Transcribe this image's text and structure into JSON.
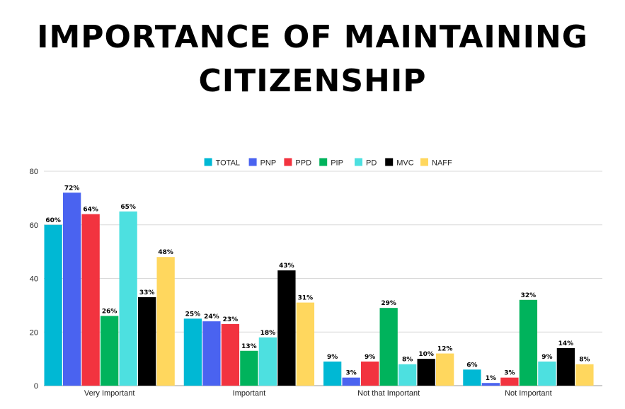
{
  "chart_data": {
    "type": "bar",
    "title": "IMPORTANCE OF MAINTAINING CITIZENSHIP",
    "categories": [
      "Very Important",
      "Important",
      "Not that Important",
      "Not Important"
    ],
    "series": [
      {
        "name": "TOTAL",
        "color": "#00B8D4",
        "values": [
          60,
          25,
          9,
          6
        ],
        "labels": [
          "60%",
          "25%",
          "9%",
          "6%"
        ]
      },
      {
        "name": "PNP",
        "color": "#4A63F0",
        "values": [
          72,
          24,
          3,
          1
        ],
        "labels": [
          "72%",
          "24%",
          "3%",
          "1%"
        ]
      },
      {
        "name": "PPD",
        "color": "#F2333F",
        "values": [
          64,
          23,
          9,
          3
        ],
        "labels": [
          "64%",
          "23%",
          "9%",
          "3%"
        ]
      },
      {
        "name": "PIP",
        "color": "#00B35C",
        "values": [
          26,
          13,
          29,
          32
        ],
        "labels": [
          "26%",
          "13%",
          "29%",
          "32%"
        ]
      },
      {
        "name": "PD",
        "color": "#4DE0E0",
        "values": [
          65,
          18,
          8,
          9
        ],
        "labels": [
          "65%",
          "18%",
          "8%",
          "9%"
        ]
      },
      {
        "name": "MVC",
        "color": "#000000",
        "values": [
          33,
          43,
          10,
          14
        ],
        "labels": [
          "33%",
          "43%",
          "10%",
          "14%"
        ]
      },
      {
        "name": "NAFF",
        "color": "#FFD75E",
        "values": [
          48,
          31,
          12,
          8
        ],
        "labels": [
          "48%",
          "31%",
          "12%",
          "8%"
        ]
      }
    ],
    "ylim": [
      0,
      80
    ],
    "yticks": [
      "0",
      "20",
      "40",
      "60",
      "80"
    ],
    "grid": true,
    "legend_position": "top-center"
  }
}
